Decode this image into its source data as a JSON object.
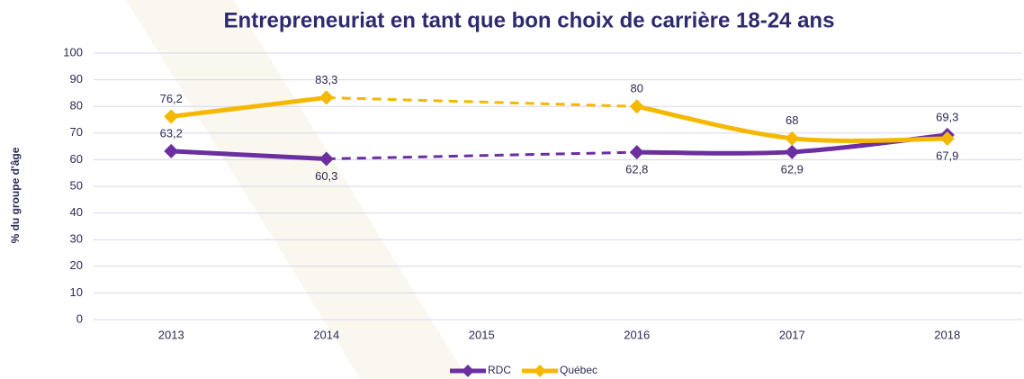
{
  "chart_data": {
    "type": "line",
    "title": "Entrepreneuriat en tant que bon choix de carrière 18-24 ans",
    "y_label": "% du groupe d'âge",
    "categories": [
      "2013",
      "2014",
      "2015",
      "2016",
      "2017",
      "2018"
    ],
    "series": [
      {
        "name": "RDC",
        "color": "#6b2fa0",
        "values": [
          63.2,
          60.3,
          null,
          62.8,
          62.9,
          69.3
        ],
        "value_labels": [
          "63,2",
          "60,3",
          null,
          "62,8",
          "62,9",
          "69,3"
        ]
      },
      {
        "name": "Québec",
        "color": "#f5b800",
        "values": [
          76.2,
          83.3,
          null,
          80,
          68,
          67.9
        ],
        "value_labels": [
          "76,2",
          "83,3",
          null,
          "80",
          "68",
          "67,9"
        ]
      }
    ],
    "ylim": [
      0,
      100
    ],
    "yticks": [
      0,
      10,
      20,
      30,
      40,
      50,
      60,
      70,
      80,
      90,
      100
    ],
    "grid": true,
    "legend": "bottom"
  }
}
